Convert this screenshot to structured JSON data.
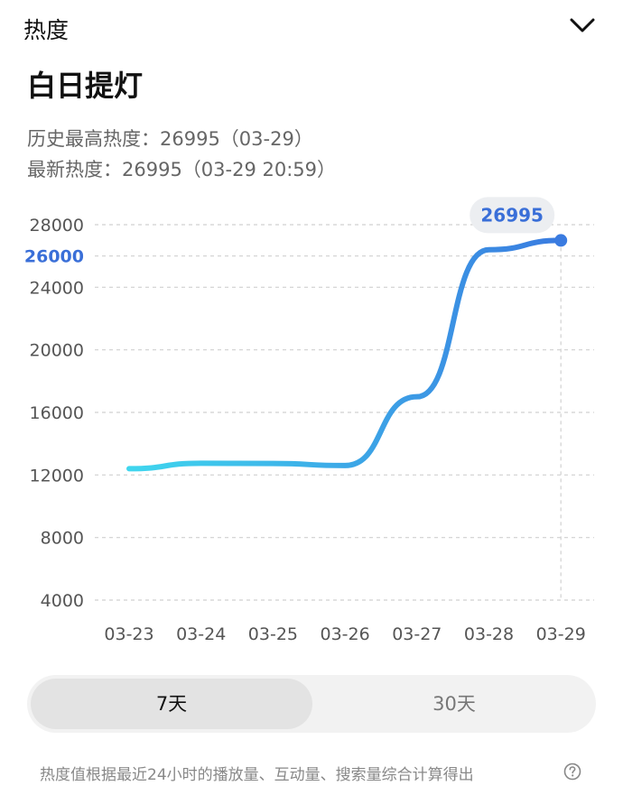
{
  "header": {
    "title": "热度",
    "toggle_icon": "chevron-down-icon"
  },
  "topic": {
    "title": "白日提灯"
  },
  "info": {
    "history_high": "历史最高热度：26995（03-29）",
    "latest": "最新热度：26995（03-29 20:59）"
  },
  "colors": {
    "line_start": "#3fd6ee",
    "line_end": "#3a7be0",
    "accent": "#3a6fd8",
    "grid": "#d0d0d0",
    "tick_text": "#555555"
  },
  "chart_data": {
    "type": "line",
    "title": "",
    "xlabel": "",
    "ylabel": "",
    "x": [
      "03-23",
      "03-24",
      "03-25",
      "03-26",
      "03-27",
      "03-28",
      "03-29"
    ],
    "values": [
      12400,
      12750,
      12730,
      12600,
      17000,
      26400,
      26995
    ],
    "ylim": [
      4000,
      28000
    ],
    "yticks": [
      4000,
      8000,
      12000,
      16000,
      20000,
      24000,
      28000
    ],
    "highlight_tick": {
      "value": 26000,
      "label": "26000"
    },
    "latest_point": {
      "x": "03-29",
      "value": 26995,
      "label": "26995"
    },
    "grid": true,
    "legend": "none"
  },
  "range_toggle": {
    "options": [
      "7天",
      "30天"
    ],
    "selected": "7天"
  },
  "footnote": {
    "text": "热度值根据最近24小时的播放量、互动量、搜索量综合计算得出",
    "help_icon": "help-circle-icon"
  }
}
